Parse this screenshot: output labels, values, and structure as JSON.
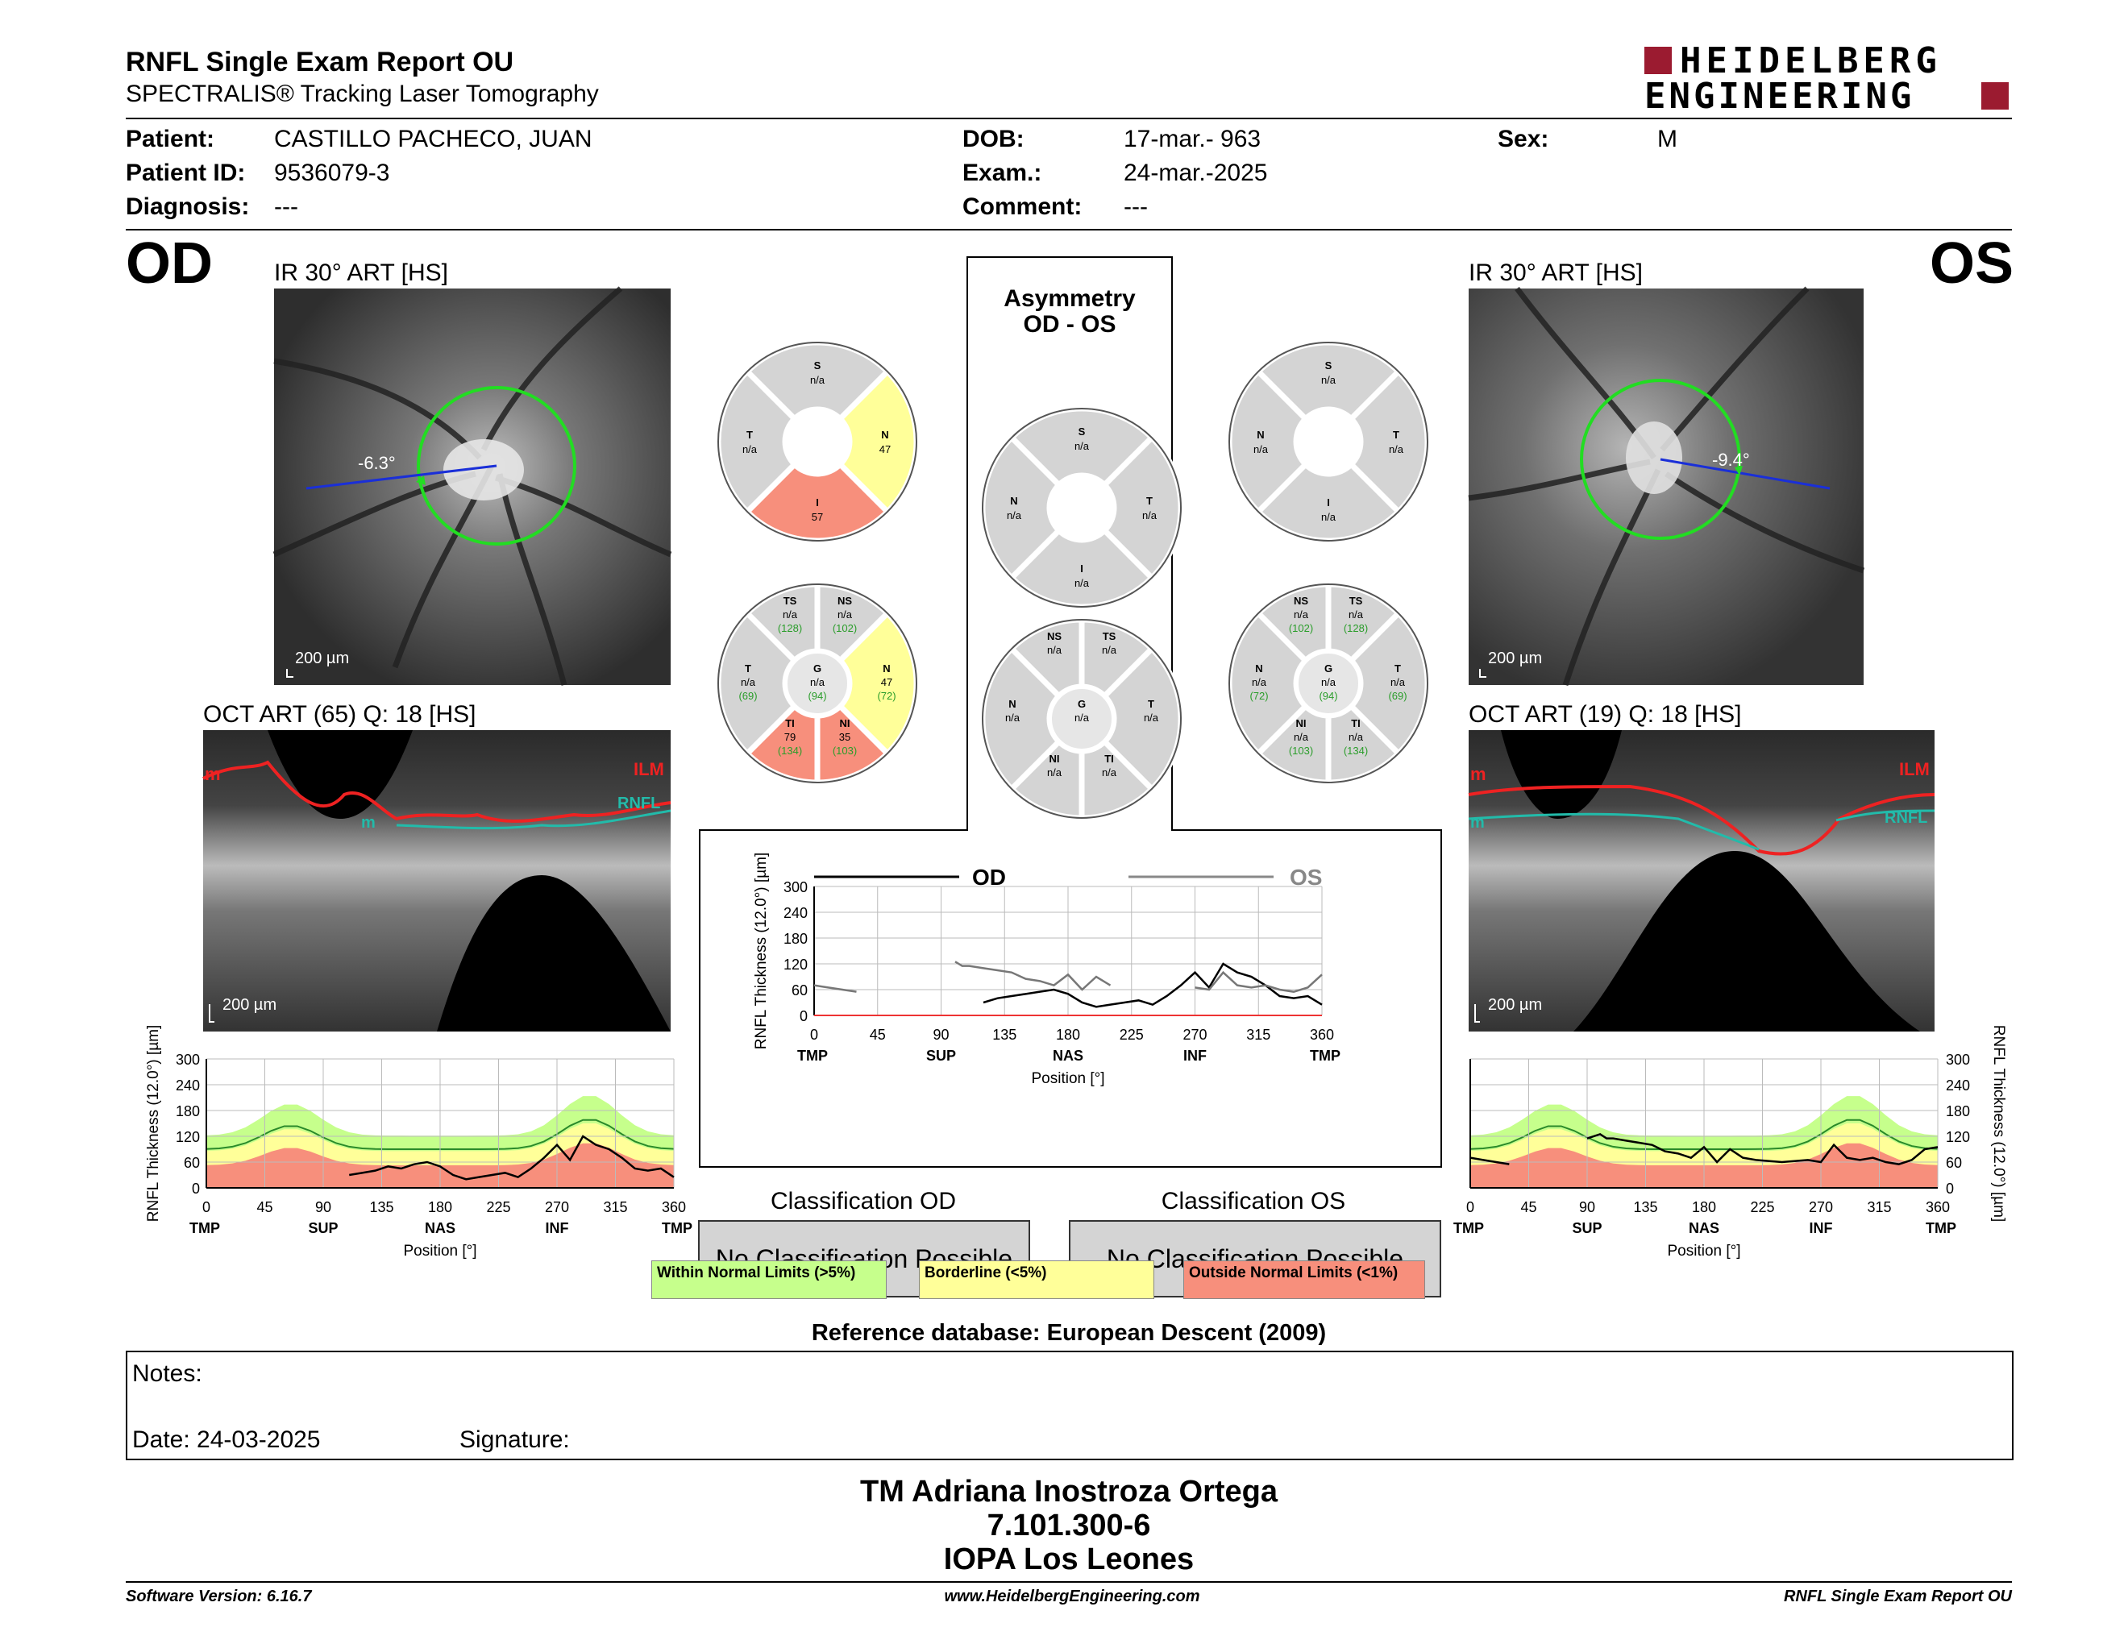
{
  "header": {
    "title": "RNFL Single Exam Report OU",
    "subtitle": "SPECTRALIS® Tracking Laser Tomography",
    "logo_line1": "HEIDELBERG",
    "logo_line2": "ENGINEERING"
  },
  "patient": {
    "name_label": "Patient:",
    "name": "CASTILLO PACHECO, JUAN",
    "id_label": "Patient ID:",
    "id": "9536079-3",
    "diag_label": "Diagnosis:",
    "diag": "---",
    "dob_label": "DOB:",
    "dob": "17-mar.- 963",
    "exam_label": "Exam.:",
    "exam": "24-mar.-2025",
    "comment_label": "Comment:",
    "comment": "---",
    "sex_label": "Sex:",
    "sex": "M"
  },
  "od": {
    "eye": "OD",
    "ir_title": "IR 30° ART [HS]",
    "angle": "-6.3°",
    "scale": "200 µm",
    "oct_title": "OCT ART (65) Q: 18 [HS]",
    "oct_scale": "200 µm",
    "ilm": "ILM",
    "rnfl": "RNFL",
    "m1": "m",
    "m2": "m",
    "sectors4": {
      "S": [
        "S",
        "n/a"
      ],
      "T": [
        "T",
        "n/a"
      ],
      "N": [
        "N",
        "47"
      ],
      "I": [
        "I",
        "57"
      ]
    },
    "sectors6": {
      "TS": [
        "TS",
        "n/a",
        "(128)"
      ],
      "NS": [
        "NS",
        "n/a",
        "(102)"
      ],
      "T": [
        "T",
        "n/a",
        "(69)"
      ],
      "G": [
        "G",
        "n/a",
        "(94)"
      ],
      "N": [
        "N",
        "47",
        "(72)"
      ],
      "TI": [
        "TI",
        "79",
        "(134)"
      ],
      "NI": [
        "NI",
        "35",
        "(103)"
      ]
    }
  },
  "os": {
    "eye": "OS",
    "ir_title": "IR 30° ART [HS]",
    "angle": "-9.4°",
    "scale": "200 µm",
    "oct_title": "OCT ART (19) Q: 18 [HS]",
    "oct_scale": "200 µm",
    "ilm": "ILM",
    "rnfl": "RNFL",
    "m1": "m",
    "m2": "m",
    "sectors4": {
      "S": [
        "S",
        "n/a"
      ],
      "N": [
        "N",
        "n/a"
      ],
      "T": [
        "T",
        "n/a"
      ],
      "I": [
        "I",
        "n/a"
      ]
    },
    "sectors6": {
      "NS": [
        "NS",
        "n/a",
        "(102)"
      ],
      "TS": [
        "TS",
        "n/a",
        "(128)"
      ],
      "N": [
        "N",
        "n/a",
        "(72)"
      ],
      "G": [
        "G",
        "n/a",
        "(94)"
      ],
      "T": [
        "T",
        "n/a",
        "(69)"
      ],
      "NI": [
        "NI",
        "n/a",
        "(103)"
      ],
      "TI": [
        "TI",
        "n/a",
        "(134)"
      ]
    }
  },
  "asymmetry": {
    "title1": "Asymmetry",
    "title2": "OD - OS",
    "sectors4": {
      "S": [
        "S",
        "n/a"
      ],
      "N": [
        "N",
        "n/a"
      ],
      "T": [
        "T",
        "n/a"
      ],
      "I": [
        "I",
        "n/a"
      ]
    },
    "sectors6": {
      "NS": [
        "NS",
        "n/a"
      ],
      "TS": [
        "TS",
        "n/a"
      ],
      "N": [
        "N",
        "n/a"
      ],
      "G": [
        "G",
        "n/a"
      ],
      "T": [
        "T",
        "n/a"
      ],
      "NI": [
        "NI",
        "n/a"
      ],
      "TI": [
        "TI",
        "n/a"
      ]
    }
  },
  "chart_data": [
    {
      "type": "line",
      "id": "od-profile",
      "ylabel": "RNFL Thickness (12.0°) [µm]",
      "xlabel": "Position [°]",
      "ylim": [
        0,
        300
      ],
      "xlim": [
        0,
        360
      ],
      "yticks": [
        "300",
        "240",
        "180",
        "120",
        "60",
        "0"
      ],
      "xticks": [
        "0",
        "45",
        "90",
        "135",
        "180",
        "225",
        "270",
        "315",
        "360"
      ],
      "region_labels": [
        "TMP",
        "SUP",
        "NAS",
        "INF",
        "TMP"
      ],
      "series": [
        {
          "name": "OD",
          "x": [
            110,
            120,
            130,
            140,
            150,
            160,
            170,
            180,
            190,
            200,
            210,
            220,
            230,
            240,
            250,
            260,
            270,
            280,
            290,
            300,
            310,
            320,
            330,
            340,
            350,
            360
          ],
          "y": [
            30,
            35,
            40,
            50,
            45,
            55,
            60,
            50,
            30,
            20,
            25,
            30,
            35,
            25,
            45,
            70,
            100,
            65,
            120,
            100,
            90,
            70,
            45,
            40,
            45,
            25
          ]
        }
      ],
      "normal_bands": "green >5%, yellow <5%, red <1%"
    },
    {
      "type": "line",
      "id": "asymmetry-profile",
      "ylabel": "RNFL Thickness (12.0°) [µm]",
      "xlabel": "Position [°]",
      "ylim": [
        0,
        300
      ],
      "xlim": [
        0,
        360
      ],
      "yticks": [
        "300",
        "240",
        "180",
        "120",
        "60",
        "0"
      ],
      "xticks": [
        "0",
        "45",
        "90",
        "135",
        "180",
        "225",
        "270",
        "315",
        "360"
      ],
      "region_labels": [
        "TMP",
        "SUP",
        "NAS",
        "INF",
        "TMP"
      ],
      "legend": [
        "OD",
        "OS"
      ],
      "series": [
        {
          "name": "OD",
          "x": [
            120,
            130,
            140,
            150,
            160,
            170,
            180,
            190,
            200,
            210,
            220,
            230,
            240,
            250,
            260,
            270,
            280,
            290,
            300,
            310,
            320,
            330,
            340,
            350,
            360
          ],
          "y": [
            30,
            40,
            45,
            50,
            55,
            60,
            50,
            30,
            20,
            25,
            30,
            35,
            25,
            45,
            70,
            100,
            65,
            120,
            100,
            90,
            70,
            45,
            40,
            45,
            25
          ]
        },
        {
          "name": "OS",
          "x": [
            0,
            10,
            20,
            30,
            100,
            105,
            110,
            120,
            130,
            140,
            150,
            160,
            170,
            180,
            190,
            200,
            210,
            270,
            280,
            290,
            300,
            310,
            320,
            330,
            340,
            350,
            360
          ],
          "y": [
            70,
            65,
            60,
            55,
            125,
            115,
            115,
            110,
            105,
            100,
            85,
            80,
            70,
            95,
            60,
            90,
            70,
            65,
            60,
            100,
            70,
            65,
            70,
            60,
            55,
            65,
            95
          ]
        }
      ]
    },
    {
      "type": "line",
      "id": "os-profile",
      "ylabel": "RNFL Thickness (12.0°) [µm]",
      "xlabel": "Position [°]",
      "ylim": [
        0,
        300
      ],
      "xlim": [
        0,
        360
      ],
      "yticks": [
        "300",
        "240",
        "180",
        "120",
        "60",
        "0"
      ],
      "xticks": [
        "0",
        "45",
        "90",
        "135",
        "180",
        "225",
        "270",
        "315",
        "360"
      ],
      "region_labels": [
        "TMP",
        "SUP",
        "NAS",
        "INF",
        "TMP"
      ],
      "series": [
        {
          "name": "OS",
          "x": [
            0,
            10,
            20,
            30,
            90,
            100,
            105,
            110,
            120,
            130,
            140,
            150,
            160,
            170,
            180,
            190,
            200,
            210,
            220,
            240,
            260,
            270,
            280,
            290,
            300,
            310,
            320,
            330,
            340,
            350,
            360
          ],
          "y": [
            70,
            65,
            60,
            55,
            115,
            125,
            115,
            115,
            110,
            105,
            100,
            85,
            80,
            70,
            95,
            60,
            90,
            70,
            65,
            60,
            65,
            60,
            100,
            70,
            65,
            70,
            60,
            55,
            65,
            90,
            95
          ]
        }
      ]
    }
  ],
  "classification": {
    "od_title": "Classification OD",
    "od_value": "No Classification Possible",
    "os_title": "Classification OS",
    "os_value": "No Classification Possible",
    "legend_green": "Within Normal Limits (>5%)",
    "legend_yellow": "Borderline (<5%)",
    "legend_red": "Outside Normal Limits (<1%)",
    "reference": "Reference database: European Descent (2009)"
  },
  "notes": {
    "label": "Notes:",
    "date": "Date: 24-03-2025",
    "signature": "Signature:"
  },
  "signer": {
    "name": "TM Adriana Inostroza Ortega",
    "rut": "7.101.300-6",
    "clinic": "IOPA Los Leones"
  },
  "footer": {
    "software": "Software Version: 6.16.7",
    "web": "www.HeidelbergEngineering.com",
    "report": "RNFL Single Exam Report OU"
  },
  "colors": {
    "green": "#c6ff8c",
    "yellow": "#ffff99",
    "red": "#f78f7c",
    "gray": "#d4d4d4",
    "logo": "#9b1b30",
    "circle": "#22dd22"
  }
}
